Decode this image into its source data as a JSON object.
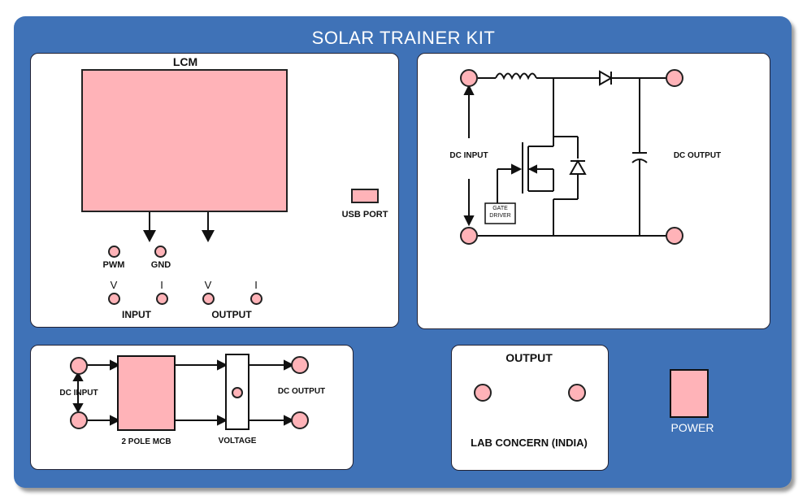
{
  "title": "SOLAR TRAINER KIT",
  "lcm": {
    "heading": "LCM",
    "usb_label": "USB PORT",
    "pwm_label": "PWM",
    "gnd_label": "GND",
    "v_in": "V",
    "i_in": "I",
    "v_out": "V",
    "i_out": "I",
    "input_label": "INPUT",
    "output_label": "OUTPUT"
  },
  "converter": {
    "dc_input": "DC INPUT",
    "dc_output": "DC OUTPUT",
    "gate_driver_line1": "GATE",
    "gate_driver_line2": "DRIVER"
  },
  "mcb": {
    "dc_input": "DC INPUT",
    "dc_output": "DC OUTPUT",
    "mcb_label": "2 POLE MCB",
    "voltage_label": "VOLTAGE"
  },
  "output_panel": {
    "heading": "OUTPUT",
    "maker": "LAB CONCERN (INDIA)"
  },
  "power": {
    "label": "POWER"
  },
  "colors": {
    "board": "#3f72b7",
    "socket": "#ffb3b8"
  }
}
